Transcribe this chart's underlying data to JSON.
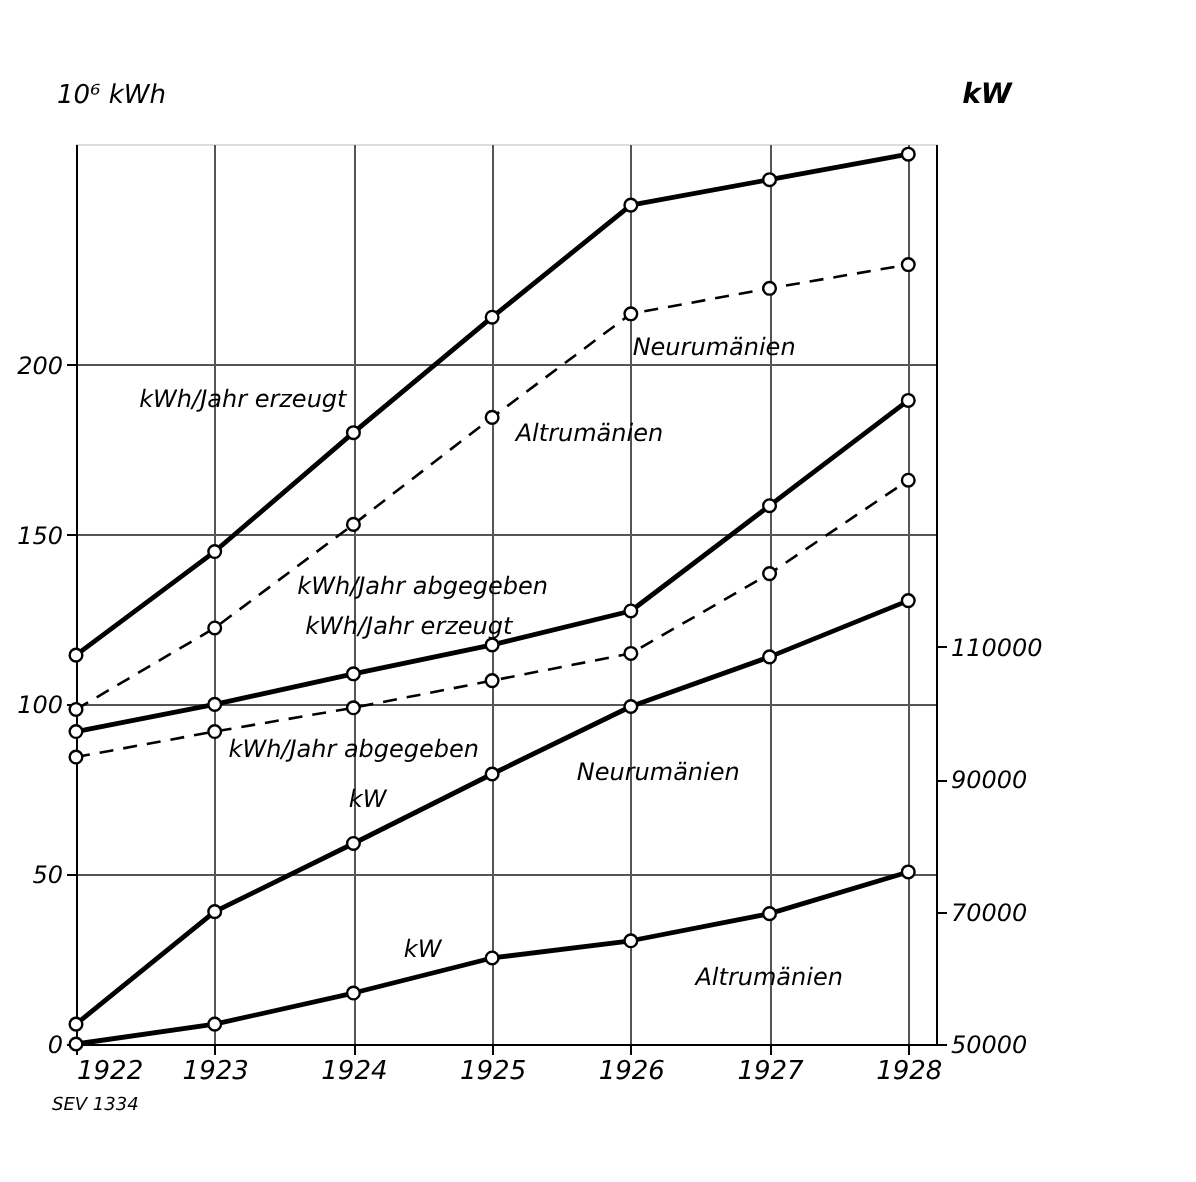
{
  "chart_data": {
    "type": "line",
    "x": [
      1922,
      1923,
      1924,
      1925,
      1926,
      1927,
      1928
    ],
    "xlim": [
      1922,
      1928.2
    ],
    "xticks": [
      1922,
      1923,
      1924,
      1925,
      1926,
      1927,
      1928
    ],
    "ylim": [
      0,
      265
    ],
    "yticks": [
      0,
      50,
      100,
      150,
      200
    ],
    "y2lim": [
      50000,
      186000
    ],
    "y2ticks": [
      50000,
      70000,
      90000,
      110000
    ],
    "ylabel": "10⁶ kWh",
    "y2label": "kW",
    "grid": true,
    "marker": "circle",
    "series": [
      {
        "color": "#000000",
        "line_style": "solid",
        "values": [
          114.5,
          145,
          180,
          214,
          247,
          254.5,
          262
        ]
      },
      {
        "color": "#000000",
        "line_style": "dashed",
        "values": [
          98.5,
          122.5,
          153,
          184.5,
          215,
          222.5,
          229.5
        ]
      },
      {
        "color": "#000000",
        "line_style": "solid",
        "values": [
          92,
          100,
          109,
          117.5,
          127.5,
          158.5,
          189.5
        ]
      },
      {
        "color": "#000000",
        "line_style": "dashed",
        "values": [
          84.5,
          92,
          99,
          107,
          115,
          138.5,
          166
        ]
      },
      {
        "color": "#000000",
        "line_style": "solid",
        "axis": "y2",
        "values": [
          53000,
          70000,
          80300,
          90800,
          101000,
          108500,
          117000
        ]
      },
      {
        "color": "#000000",
        "line_style": "solid",
        "axis": "y2",
        "values": [
          50000,
          53000,
          57700,
          63000,
          65600,
          69700,
          76000
        ]
      }
    ],
    "annotations": [
      "kWh/Jahr erzeugt",
      "kWh/Jahr abgegeben",
      "Neurumänien",
      "Altrumänien",
      "kWh/Jahr erzeugt",
      "kWh/Jahr abgegeben",
      "kW",
      "Neurumänien",
      "kW",
      "Altrumänien",
      "SEV 1334"
    ]
  }
}
